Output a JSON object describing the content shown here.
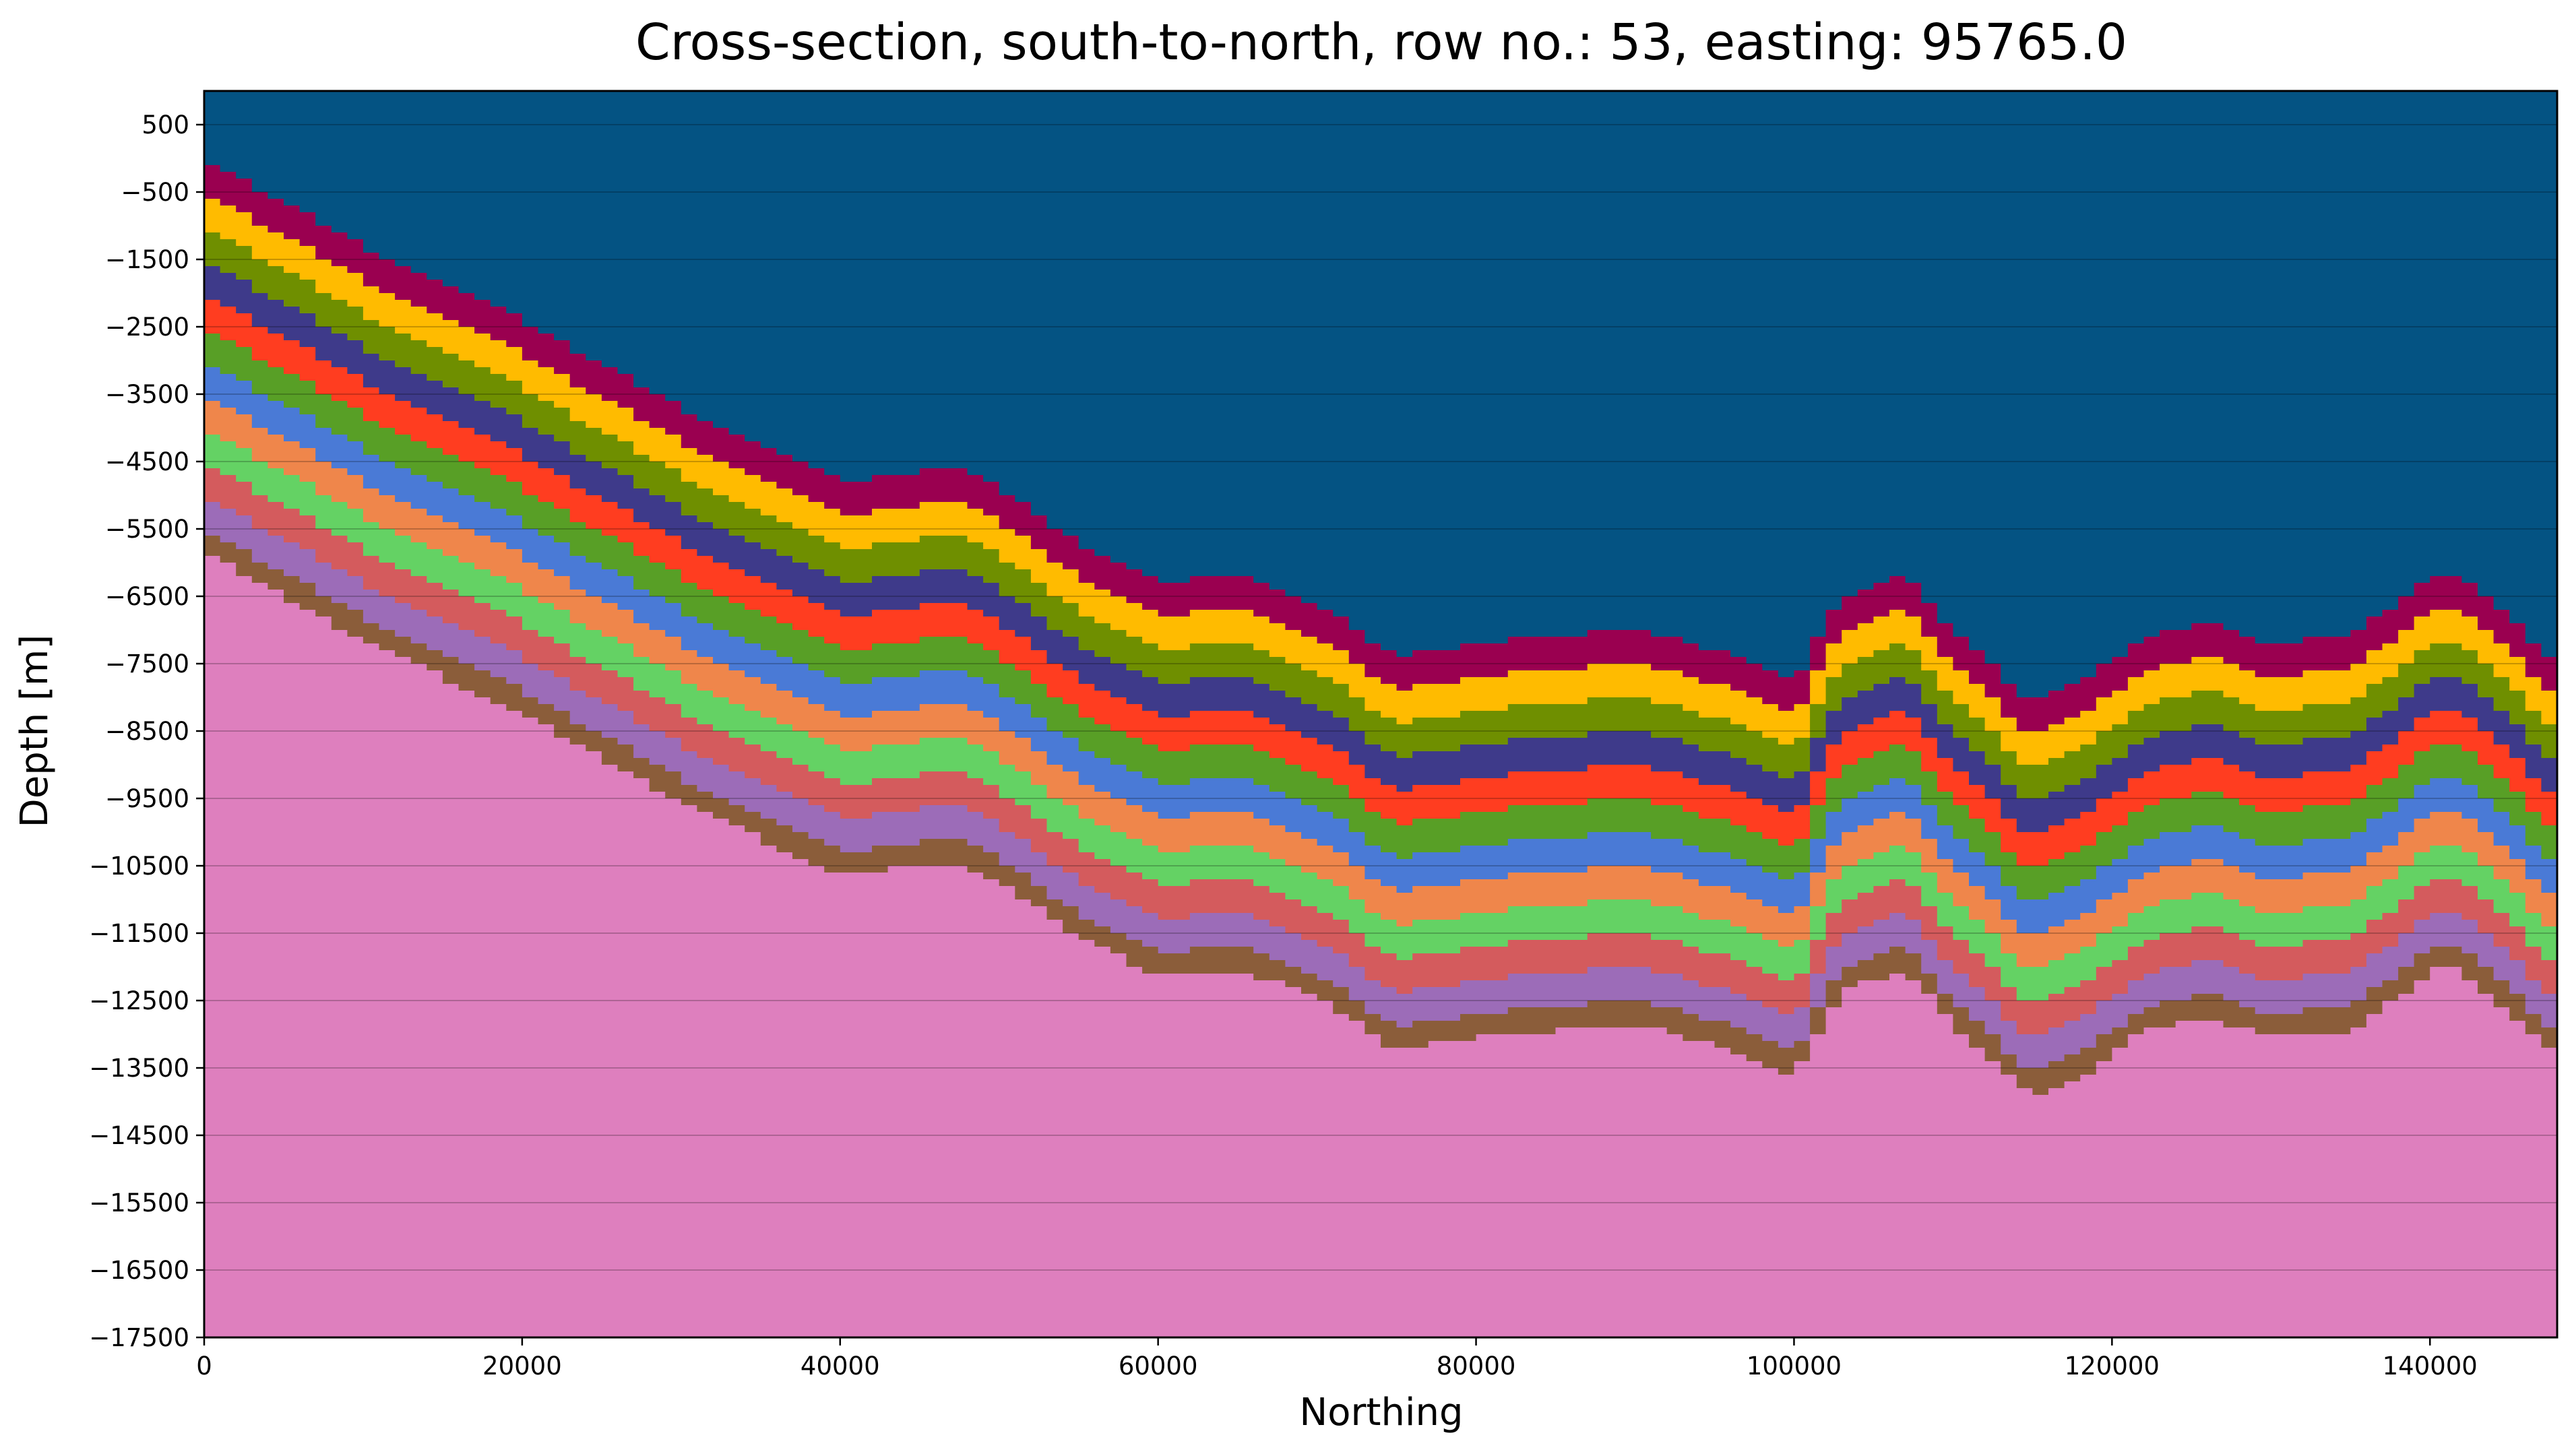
{
  "chart_data": {
    "type": "area",
    "title": "Cross-section, south-to-north, row no.: 53, easting: 95765.0",
    "xlabel": "Northing",
    "ylabel": "Depth [m]",
    "xlim": [
      0,
      148000
    ],
    "ylim": [
      -17500,
      1000
    ],
    "xticks": [
      0,
      20000,
      40000,
      60000,
      80000,
      100000,
      120000,
      140000
    ],
    "yticks": [
      500,
      -500,
      -1500,
      -2500,
      -3500,
      -4500,
      -5500,
      -6500,
      -7500,
      -8500,
      -9500,
      -10500,
      -11500,
      -12500,
      -13500,
      -14500,
      -15500,
      -16500,
      -17500
    ],
    "grid": "horizontal",
    "background_color": "#045383",
    "basement_color": "#de7fbe",
    "layer_colors": [
      "#9a0050",
      "#ffbb00",
      "#6f8f00",
      "#3e3a8a",
      "#ff3d20",
      "#589f26",
      "#4a7ad6",
      "#ef864b",
      "#64d264",
      "#d45b5d",
      "#9c6cb8",
      "#8b5d3a"
    ],
    "x": [
      0,
      10000,
      20000,
      30000,
      40000,
      47000,
      50000,
      55000,
      60000,
      65000,
      70000,
      75000,
      80000,
      90000,
      95000,
      100000,
      103000,
      107000,
      110000,
      115000,
      118000,
      122000,
      126000,
      130000,
      135000,
      141000,
      144000,
      148000
    ],
    "series": [
      {
        "values": [
          0,
          -1300,
          -2400,
          -3700,
          -4800,
          -4600,
          -4900,
          -5700,
          -6300,
          -6200,
          -6600,
          -7400,
          -7200,
          -7000,
          -7300,
          -7800,
          -6500,
          -6200,
          -7000,
          -8100,
          -7800,
          -7100,
          -6900,
          -7200,
          -7100,
          -6100,
          -6600,
          -7500
        ]
      },
      {
        "values": [
          -500,
          -1800,
          -2900,
          -4200,
          -5300,
          -5100,
          -5400,
          -6200,
          -6800,
          -6700,
          -7100,
          -7900,
          -7700,
          -7500,
          -7800,
          -8300,
          -7000,
          -6700,
          -7500,
          -8600,
          -8300,
          -7600,
          -7400,
          -7700,
          -7600,
          -6600,
          -7100,
          -8000
        ]
      },
      {
        "values": [
          -1000,
          -2300,
          -3400,
          -4700,
          -5800,
          -5600,
          -5900,
          -6700,
          -7300,
          -7200,
          -7600,
          -8400,
          -8200,
          -8000,
          -8300,
          -8800,
          -7500,
          -7200,
          -8000,
          -9100,
          -8800,
          -8100,
          -7900,
          -8200,
          -8100,
          -7100,
          -7600,
          -8500
        ]
      },
      {
        "values": [
          -1500,
          -2800,
          -3900,
          -5200,
          -6300,
          -6100,
          -6400,
          -7200,
          -7800,
          -7700,
          -8100,
          -8900,
          -8700,
          -8500,
          -8800,
          -9300,
          -8000,
          -7700,
          -8500,
          -9600,
          -9300,
          -8600,
          -8400,
          -8700,
          -8600,
          -7600,
          -8100,
          -9000
        ]
      },
      {
        "values": [
          -2000,
          -3300,
          -4400,
          -5700,
          -6800,
          -6600,
          -6900,
          -7700,
          -8300,
          -8200,
          -8600,
          -9400,
          -9200,
          -9000,
          -9300,
          -9800,
          -8500,
          -8200,
          -9000,
          -10100,
          -9800,
          -9100,
          -8900,
          -9200,
          -9100,
          -8100,
          -8600,
          -9500
        ]
      },
      {
        "values": [
          -2500,
          -3800,
          -4900,
          -6200,
          -7300,
          -7100,
          -7400,
          -8200,
          -8800,
          -8700,
          -9100,
          -9900,
          -9700,
          -9500,
          -9800,
          -10300,
          -9000,
          -8700,
          -9500,
          -10600,
          -10300,
          -9600,
          -9400,
          -9700,
          -9600,
          -8600,
          -9100,
          -10000
        ]
      },
      {
        "values": [
          -3000,
          -4300,
          -5400,
          -6700,
          -7800,
          -7600,
          -7900,
          -8700,
          -9300,
          -9200,
          -9600,
          -10400,
          -10200,
          -10000,
          -10300,
          -10800,
          -9500,
          -9200,
          -10000,
          -11100,
          -10800,
          -10100,
          -9900,
          -10200,
          -10100,
          -9100,
          -9600,
          -10500
        ]
      },
      {
        "values": [
          -3500,
          -4800,
          -5900,
          -7200,
          -8300,
          -8100,
          -8400,
          -9200,
          -9800,
          -9700,
          -10100,
          -10900,
          -10700,
          -10500,
          -10800,
          -11300,
          -10000,
          -9700,
          -10500,
          -11600,
          -11300,
          -10600,
          -10400,
          -10700,
          -10600,
          -9600,
          -10100,
          -11000
        ]
      },
      {
        "values": [
          -4000,
          -5300,
          -6400,
          -7700,
          -8800,
          -8600,
          -8900,
          -9700,
          -10300,
          -10200,
          -10600,
          -11400,
          -11200,
          -11000,
          -11300,
          -11800,
          -10500,
          -10200,
          -11000,
          -12100,
          -11800,
          -11100,
          -10900,
          -11200,
          -11100,
          -10100,
          -10600,
          -11500
        ]
      },
      {
        "values": [
          -4500,
          -5800,
          -6900,
          -8200,
          -9300,
          -9100,
          -9400,
          -10200,
          -10800,
          -10700,
          -11100,
          -11900,
          -11700,
          -11500,
          -11800,
          -12300,
          -11000,
          -10700,
          -11500,
          -12600,
          -12300,
          -11600,
          -11400,
          -11700,
          -11600,
          -10600,
          -11100,
          -12000
        ]
      },
      {
        "values": [
          -5000,
          -6300,
          -7400,
          -8700,
          -9800,
          -9600,
          -9900,
          -10700,
          -11300,
          -11200,
          -11600,
          -12400,
          -12200,
          -12000,
          -12300,
          -12800,
          -11500,
          -11200,
          -12000,
          -13100,
          -12800,
          -12100,
          -11900,
          -12200,
          -12100,
          -11100,
          -11600,
          -12500
        ]
      },
      {
        "values": [
          -5500,
          -6800,
          -7900,
          -9200,
          -10300,
          -10100,
          -10400,
          -11200,
          -11800,
          -11700,
          -12100,
          -12900,
          -12700,
          -12500,
          -12800,
          -13300,
          -12000,
          -11700,
          -12500,
          -13600,
          -13300,
          -12600,
          -12400,
          -12700,
          -12600,
          -11600,
          -12100,
          -13000
        ]
      }
    ]
  }
}
